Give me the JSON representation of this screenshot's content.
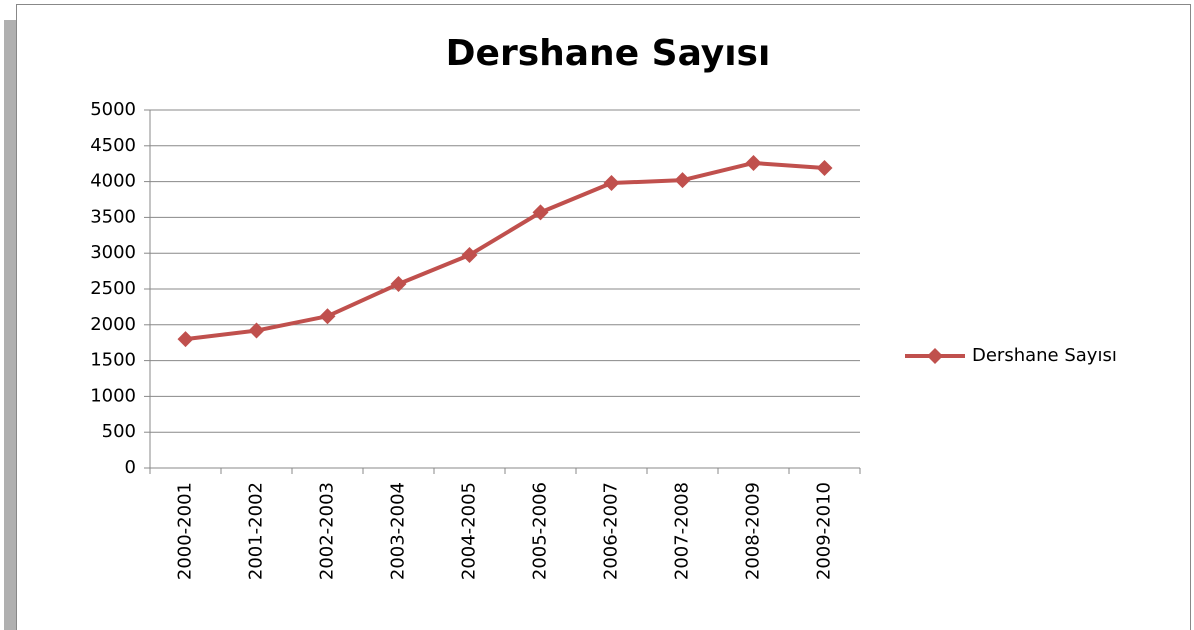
{
  "chart_data": {
    "type": "line",
    "title": "Dershane Sayısı",
    "categories": [
      "2000-2001",
      "2001-2002",
      "2002-2003",
      "2003-2004",
      "2004-2005",
      "2005-2006",
      "2006-2007",
      "2007-2008",
      "2008-2009",
      "2009-2010"
    ],
    "series": [
      {
        "name": "Dershane Sayısı",
        "color": "#c0504d",
        "values": [
          1800,
          1920,
          2120,
          2570,
          2975,
          3570,
          3980,
          4020,
          4260,
          4190
        ]
      }
    ],
    "ylim": [
      0,
      5000
    ],
    "yticks": [
      0,
      500,
      1000,
      1500,
      2000,
      2500,
      3000,
      3500,
      4000,
      4500,
      5000
    ],
    "grid": true,
    "legend": "right"
  }
}
